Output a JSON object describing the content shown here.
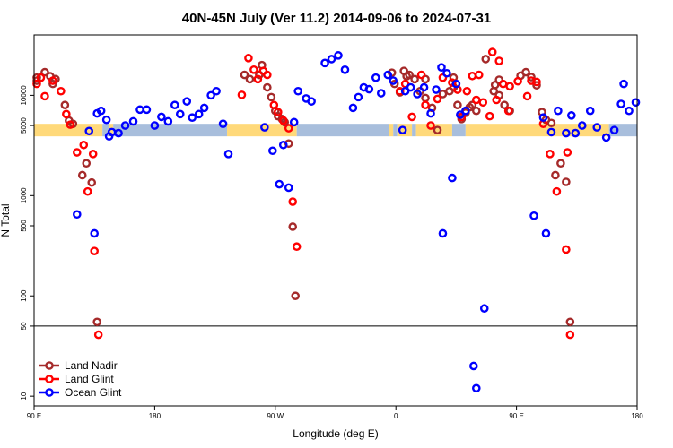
{
  "chart_data": {
    "type": "scatter",
    "title": "40N-45N July (Ver 11.2)   2014-09-06 to 2024-07-31",
    "xlabel": "Longitude (deg E)",
    "ylabel": "N Total",
    "x_scale": "longitude, 90E through 180 and 0 to 180E (450 deg span)",
    "y_scale": "log",
    "xlim": [
      90,
      540
    ],
    "ylim": [
      8,
      40000
    ],
    "x_ticks": [
      {
        "value": 90,
        "label": "90 E"
      },
      {
        "value": 180,
        "label": "180"
      },
      {
        "value": 270,
        "label": "90 W"
      },
      {
        "value": 360,
        "label": "0"
      },
      {
        "value": 450,
        "label": "90 E"
      },
      {
        "value": 540,
        "label": "180"
      }
    ],
    "y_ticks": [
      {
        "value": 10,
        "label": "10"
      },
      {
        "value": 50,
        "label": "50"
      },
      {
        "value": 100,
        "label": "100"
      },
      {
        "value": 500,
        "label": "500"
      },
      {
        "value": 1000,
        "label": "1000"
      },
      {
        "value": 5000,
        "label": "5000"
      },
      {
        "value": 10000,
        "label": "10000"
      }
    ],
    "reference_line": {
      "y": 50,
      "color": "#000000"
    },
    "surface_band": {
      "y_range": [
        3900,
        5200
      ],
      "colors": {
        "land": "#ffd97a",
        "ocean": "#a8bedc"
      },
      "segments": [
        {
          "type": "land",
          "x": [
            90,
            141
          ]
        },
        {
          "type": "ocean",
          "x": [
            141,
            146
          ]
        },
        {
          "type": "land",
          "x": [
            146,
            149
          ]
        },
        {
          "type": "ocean",
          "x": [
            149,
            234
          ]
        },
        {
          "type": "land",
          "x": [
            234,
            286
          ]
        },
        {
          "type": "ocean",
          "x": [
            286,
            355
          ]
        },
        {
          "type": "land",
          "x": [
            355,
            358
          ]
        },
        {
          "type": "ocean",
          "x": [
            358,
            361
          ]
        },
        {
          "type": "land",
          "x": [
            361,
            372
          ]
        },
        {
          "type": "ocean",
          "x": [
            372,
            375
          ]
        },
        {
          "type": "land",
          "x": [
            375,
            402
          ]
        },
        {
          "type": "ocean",
          "x": [
            402,
            412
          ]
        },
        {
          "type": "land",
          "x": [
            412,
            519
          ]
        },
        {
          "type": "ocean",
          "x": [
            519,
            540
          ]
        }
      ]
    },
    "legend": {
      "position": "bottom-left"
    },
    "series": [
      {
        "name": "Land Nadir",
        "color": "#a52a2a",
        "points": [
          [
            92,
            15000
          ],
          [
            98,
            17000
          ],
          [
            102,
            15500
          ],
          [
            106,
            14500
          ],
          [
            113,
            8000
          ],
          [
            116,
            5600
          ],
          [
            119,
            5200
          ],
          [
            126,
            1600
          ],
          [
            129,
            2100
          ],
          [
            133,
            1350
          ],
          [
            137,
            55
          ],
          [
            92,
            14000
          ],
          [
            104,
            13000
          ],
          [
            247,
            16000
          ],
          [
            251,
            14500
          ],
          [
            260,
            20000
          ],
          [
            264,
            12000
          ],
          [
            267,
            9600
          ],
          [
            270,
            7000
          ],
          [
            272,
            6200
          ],
          [
            275,
            5800
          ],
          [
            277,
            5400
          ],
          [
            283,
            490
          ],
          [
            285,
            100
          ],
          [
            258,
            16000
          ],
          [
            280,
            3300
          ],
          [
            370,
            16000
          ],
          [
            374,
            14500
          ],
          [
            378,
            11000
          ],
          [
            382,
            9400
          ],
          [
            387,
            7500
          ],
          [
            391,
            4500
          ],
          [
            395,
            10300
          ],
          [
            400,
            11000
          ],
          [
            403,
            12000
          ],
          [
            406,
            8000
          ],
          [
            409,
            5800
          ],
          [
            412,
            6700
          ],
          [
            415,
            7600
          ],
          [
            417,
            8000
          ],
          [
            420,
            7000
          ],
          [
            382,
            14500
          ],
          [
            366,
            17500
          ],
          [
            368,
            15500
          ],
          [
            357,
            16800
          ],
          [
            359,
            13000
          ],
          [
            363,
            10700
          ],
          [
            453,
            15700
          ],
          [
            457,
            17000
          ],
          [
            461,
            15200
          ],
          [
            465,
            12600
          ],
          [
            469,
            6800
          ],
          [
            472,
            5700
          ],
          [
            476,
            5300
          ],
          [
            479,
            1600
          ],
          [
            483,
            2100
          ],
          [
            487,
            1370
          ],
          [
            490,
            55
          ],
          [
            434,
            12700
          ],
          [
            437,
            10000
          ],
          [
            441,
            8000
          ],
          [
            445,
            7000
          ],
          [
            427,
            23000
          ],
          [
            403,
            15000
          ],
          [
            437,
            14300
          ],
          [
            433,
            11000
          ]
        ]
      },
      {
        "name": "Land Glint",
        "color": "#ff0000",
        "points": [
          [
            92,
            13000
          ],
          [
            95,
            15000
          ],
          [
            104,
            14000
          ],
          [
            110,
            11000
          ],
          [
            114,
            6500
          ],
          [
            117,
            5100
          ],
          [
            122,
            2700
          ],
          [
            127,
            3200
          ],
          [
            130,
            1100
          ],
          [
            135,
            280
          ],
          [
            138,
            41
          ],
          [
            134,
            2600
          ],
          [
            98,
            9800
          ],
          [
            245,
            10100
          ],
          [
            250,
            23500
          ],
          [
            254,
            18000
          ],
          [
            257,
            14500
          ],
          [
            261,
            17500
          ],
          [
            269,
            8000
          ],
          [
            272,
            6800
          ],
          [
            276,
            5600
          ],
          [
            280,
            4700
          ],
          [
            283,
            870
          ],
          [
            286,
            310
          ],
          [
            264,
            16000
          ],
          [
            363,
            11000
          ],
          [
            367,
            13000
          ],
          [
            372,
            6100
          ],
          [
            379,
            16000
          ],
          [
            382,
            8000
          ],
          [
            386,
            5000
          ],
          [
            391,
            9200
          ],
          [
            395,
            15000
          ],
          [
            402,
            13400
          ],
          [
            406,
            11400
          ],
          [
            409,
            6100
          ],
          [
            413,
            11000
          ],
          [
            417,
            15600
          ],
          [
            420,
            9000
          ],
          [
            425,
            8500
          ],
          [
            430,
            6200
          ],
          [
            435,
            9000
          ],
          [
            440,
            13000
          ],
          [
            444,
            7000
          ],
          [
            461,
            14000
          ],
          [
            465,
            13600
          ],
          [
            470,
            5200
          ],
          [
            475,
            2600
          ],
          [
            480,
            1100
          ],
          [
            487,
            290
          ],
          [
            490,
            41
          ],
          [
            488,
            2700
          ],
          [
            458,
            9800
          ],
          [
            451,
            13800
          ],
          [
            445,
            12300
          ],
          [
            432,
            27000
          ],
          [
            437,
            22000
          ],
          [
            422,
            16000
          ]
        ]
      },
      {
        "name": "Ocean Glint",
        "color": "#0000ff",
        "points": [
          [
            122,
            650
          ],
          [
            131,
            4400
          ],
          [
            137,
            6600
          ],
          [
            144,
            5700
          ],
          [
            148,
            4300
          ],
          [
            153,
            4200
          ],
          [
            158,
            5000
          ],
          [
            164,
            5500
          ],
          [
            169,
            7200
          ],
          [
            174,
            7200
          ],
          [
            180,
            5000
          ],
          [
            185,
            6100
          ],
          [
            190,
            5500
          ],
          [
            195,
            8000
          ],
          [
            199,
            6500
          ],
          [
            204,
            8700
          ],
          [
            208,
            6000
          ],
          [
            213,
            6500
          ],
          [
            217,
            7500
          ],
          [
            222,
            10000
          ],
          [
            226,
            11000
          ],
          [
            231,
            5200
          ],
          [
            135,
            420
          ],
          [
            140,
            7000
          ],
          [
            146,
            3900
          ],
          [
            235,
            2600
          ],
          [
            284,
            5400
          ],
          [
            287,
            11000
          ],
          [
            293,
            9300
          ],
          [
            297,
            8700
          ],
          [
            276,
            3200
          ],
          [
            280,
            1200
          ],
          [
            273,
            1300
          ],
          [
            268,
            2800
          ],
          [
            262,
            4800
          ],
          [
            307,
            21000
          ],
          [
            312,
            23000
          ],
          [
            317,
            25000
          ],
          [
            322,
            18000
          ],
          [
            328,
            7500
          ],
          [
            332,
            9600
          ],
          [
            336,
            12000
          ],
          [
            340,
            11500
          ],
          [
            345,
            15000
          ],
          [
            349,
            10500
          ],
          [
            354,
            16000
          ],
          [
            358,
            14000
          ],
          [
            365,
            4500
          ],
          [
            367,
            11000
          ],
          [
            371,
            12000
          ],
          [
            376,
            10300
          ],
          [
            381,
            12000
          ],
          [
            386,
            6600
          ],
          [
            390,
            11400
          ],
          [
            394,
            19000
          ],
          [
            398,
            16600
          ],
          [
            402,
            1500
          ],
          [
            405,
            13000
          ],
          [
            408,
            6400
          ],
          [
            412,
            7000
          ],
          [
            418,
            20
          ],
          [
            420,
            12
          ],
          [
            426,
            75
          ],
          [
            395,
            420
          ],
          [
            463,
            630
          ],
          [
            470,
            6000
          ],
          [
            476,
            4300
          ],
          [
            481,
            7000
          ],
          [
            487,
            4200
          ],
          [
            494,
            4200
          ],
          [
            499,
            5000
          ],
          [
            505,
            7000
          ],
          [
            510,
            4800
          ],
          [
            517,
            3800
          ],
          [
            523,
            4500
          ],
          [
            528,
            8200
          ],
          [
            530,
            13000
          ],
          [
            534,
            7000
          ],
          [
            539,
            8500
          ],
          [
            491,
            6300
          ],
          [
            472,
            420
          ]
        ]
      }
    ]
  }
}
